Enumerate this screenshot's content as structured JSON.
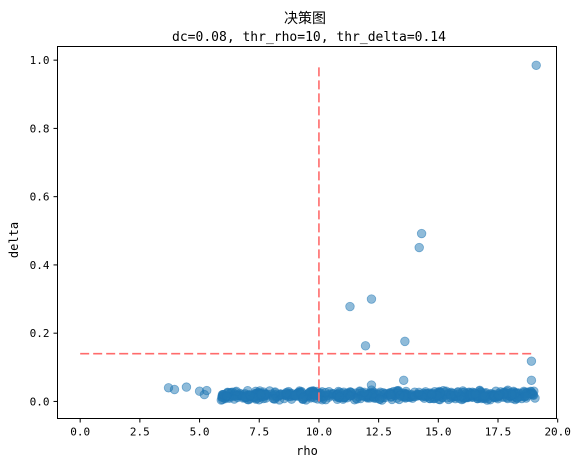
{
  "chart_data": {
    "type": "scatter",
    "title": "决策图",
    "subtitle": "dc=0.08, thr_rho=10, thr_delta=0.14",
    "xlabel": "rho",
    "ylabel": "delta",
    "xlim": [
      -0.95,
      19.95
    ],
    "ylim": [
      -0.05,
      1.04
    ],
    "xticks": [
      0.0,
      2.5,
      5.0,
      7.5,
      10.0,
      12.5,
      15.0,
      17.5,
      20.0
    ],
    "xtick_labels": [
      "0.0",
      "2.5",
      "5.0",
      "7.5",
      "10.0",
      "12.5",
      "15.0",
      "17.5",
      "20.0"
    ],
    "yticks": [
      0.0,
      0.2,
      0.4,
      0.6,
      0.8,
      1.0
    ],
    "ytick_labels": [
      "0.0",
      "0.2",
      "0.4",
      "0.6",
      "0.8",
      "1.0"
    ],
    "grid": false,
    "point_color": "#1f77b4",
    "line_color": "#ff6b6b",
    "threshold_lines": [
      {
        "orientation": "vertical",
        "x": 10,
        "y_range": [
          0,
          0.985
        ]
      },
      {
        "orientation": "horizontal",
        "y": 0.14,
        "x_range": [
          0,
          18.9
        ]
      }
    ],
    "outliers": [
      {
        "x": 19.1,
        "y": 0.985
      },
      {
        "x": 14.3,
        "y": 0.492
      },
      {
        "x": 14.2,
        "y": 0.451
      },
      {
        "x": 12.2,
        "y": 0.3
      },
      {
        "x": 11.3,
        "y": 0.278
      },
      {
        "x": 13.6,
        "y": 0.176
      },
      {
        "x": 11.95,
        "y": 0.163
      },
      {
        "x": 18.9,
        "y": 0.118
      },
      {
        "x": 18.9,
        "y": 0.062
      },
      {
        "x": 13.55,
        "y": 0.062
      },
      {
        "x": 12.2,
        "y": 0.048
      },
      {
        "x": 3.7,
        "y": 0.04
      },
      {
        "x": 3.95,
        "y": 0.035
      },
      {
        "x": 4.45,
        "y": 0.042
      },
      {
        "x": 5.0,
        "y": 0.03
      },
      {
        "x": 5.3,
        "y": 0.032
      },
      {
        "x": 5.2,
        "y": 0.02
      },
      {
        "x": 19.0,
        "y": 0.03
      },
      {
        "x": 19.05,
        "y": 0.01
      }
    ],
    "dense_band": {
      "x_range": [
        5.9,
        19.0
      ],
      "y_range": [
        0.003,
        0.034
      ],
      "count": 650,
      "note": "many overlapping points near delta ≈ 0.01–0.03"
    }
  }
}
